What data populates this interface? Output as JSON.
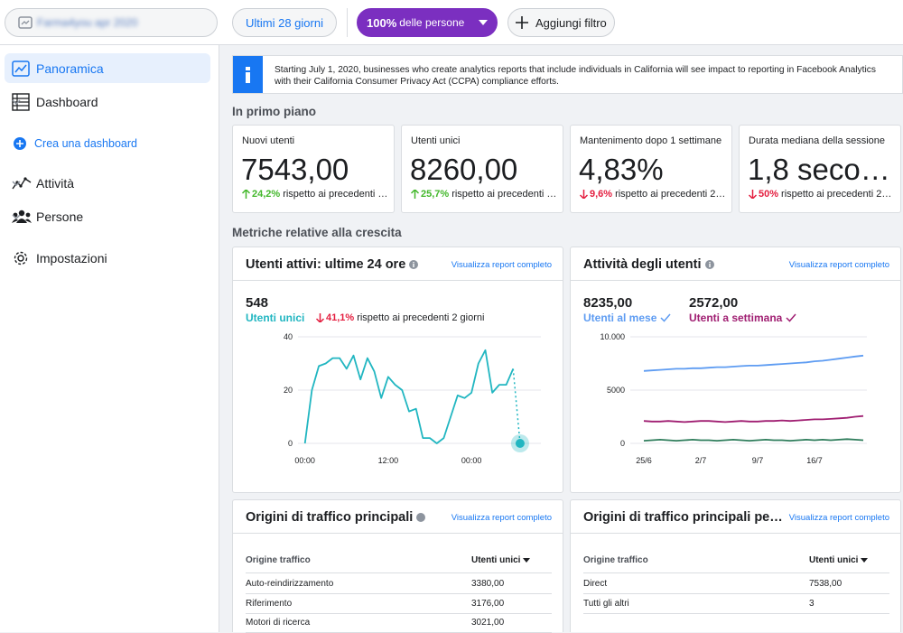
{
  "topbar": {
    "app_name": "Farma4you apr 2020",
    "date_range": "Ultimi 28 giorni",
    "audience_percent": "100%",
    "audience_label": "delle persone",
    "add_filter": "Aggiungi filtro"
  },
  "sidebar": {
    "items": [
      "Panoramica",
      "Dashboard",
      "Crea una dashboard",
      "Attività",
      "Persone",
      "Impostazioni"
    ]
  },
  "notice": [
    "Starting July 1, 2020, businesses who create analytics reports that include individuals in California will see impact to reporting in Facebook Analytics",
    "with their California Consumer Privacy Act (CCPA) compliance efforts."
  ],
  "highlights": {
    "title": "In primo piano",
    "cards": [
      {
        "label": "Nuovi utenti",
        "value": "7543,00",
        "change": "24,2%",
        "direction": "up",
        "comparison": "rispetto ai precedenti …"
      },
      {
        "label": "Utenti unici",
        "value": "8260,00",
        "change": "25,7%",
        "direction": "up",
        "comparison": "rispetto ai precedenti …"
      },
      {
        "label": "Mantenimento dopo 1 settimane",
        "value": "4,83%",
        "change": "9,6%",
        "direction": "down",
        "comparison": "rispetto ai precedenti 2…"
      },
      {
        "label": "Durata mediana della sessione",
        "value": "1,8 seco…",
        "change": "50%",
        "direction": "down",
        "comparison": "rispetto ai precedenti 2…"
      }
    ]
  },
  "growth": {
    "title": "Metriche relative alla crescita"
  },
  "chart_data": [
    {
      "type": "line",
      "title": "Utenti attivi: ultime 24 ore",
      "link": "Visualizza report completo",
      "headline": {
        "value": "548",
        "label": "Utenti unici",
        "change": "41,1%",
        "direction": "down",
        "comparison": "rispetto ai precedenti 2 giorni"
      },
      "x": [
        0,
        1,
        2,
        3,
        4,
        5,
        6,
        7,
        8,
        9,
        10,
        11,
        12,
        13,
        14,
        15,
        16,
        17,
        18,
        19,
        20,
        21,
        22,
        23,
        24,
        25,
        26,
        27,
        28,
        29,
        30,
        31
      ],
      "xlim": [
        -1,
        34
      ],
      "xticks": [
        {
          "value": 0,
          "label": "00:00"
        },
        {
          "value": 12,
          "label": "12:00"
        },
        {
          "value": 24,
          "label": "00:00"
        }
      ],
      "ylim": [
        0,
        40
      ],
      "yticks": [
        0,
        20,
        40
      ],
      "grid": true,
      "incomplete_last": true,
      "series": [
        {
          "color": "#21b6c1",
          "values": [
            0,
            20,
            29,
            30,
            32,
            32,
            28,
            33,
            24,
            32,
            27,
            17,
            25,
            22,
            20,
            12,
            13,
            2,
            2,
            0,
            2,
            10,
            18,
            17,
            19,
            30,
            35,
            19,
            22,
            22,
            28,
            0
          ]
        }
      ]
    },
    {
      "type": "line",
      "title": "Attività degli utenti",
      "link": "Visualizza report completo",
      "categories": [
        "25/6",
        null,
        null,
        null,
        null,
        null,
        null,
        "2/7",
        null,
        null,
        null,
        null,
        null,
        null,
        "9/7",
        null,
        null,
        null,
        null,
        null,
        null,
        "16/7",
        null,
        null,
        null,
        null,
        null,
        null
      ],
      "ylim": [
        0,
        10000
      ],
      "yticks": [
        0,
        5000,
        {
          "value": 10000,
          "label": "10.000"
        }
      ],
      "grid": true,
      "series": [
        {
          "name": "Utenti al mese",
          "headline": "8235,00",
          "color": "#5e9cf2",
          "values": [
            6800,
            6850,
            6900,
            6950,
            7000,
            7000,
            7050,
            7050,
            7100,
            7150,
            7150,
            7200,
            7250,
            7300,
            7300,
            7350,
            7400,
            7450,
            7500,
            7550,
            7600,
            7700,
            7750,
            7850,
            7950,
            8050,
            8150,
            8235
          ]
        },
        {
          "name": "Utenti a settimana",
          "headline": "2572,00",
          "color": "#a01f72",
          "values": [
            2100,
            2050,
            2050,
            2100,
            2050,
            2000,
            2050,
            2100,
            2100,
            2050,
            2000,
            2050,
            2100,
            2050,
            2050,
            2100,
            2100,
            2150,
            2100,
            2150,
            2200,
            2250,
            2250,
            2300,
            2350,
            2400,
            2500,
            2572
          ]
        },
        {
          "color": "#2f7d5c",
          "values": [
            250,
            300,
            350,
            300,
            250,
            300,
            350,
            300,
            300,
            250,
            300,
            350,
            300,
            250,
            300,
            350,
            300,
            300,
            250,
            300,
            350,
            300,
            350,
            300,
            350,
            400,
            350,
            300
          ]
        }
      ]
    }
  ],
  "tables": [
    {
      "title": "Origini di traffico principali",
      "link": "Visualizza report completo",
      "columns": [
        "Origine traffico",
        "Utenti unici"
      ],
      "rows": [
        [
          "Auto-reindirizzamento",
          "3380,00"
        ],
        [
          "Riferimento",
          "3176,00"
        ],
        [
          "Motori di ricerca",
          "3021,00"
        ]
      ]
    },
    {
      "title": "Origini di traffico principali pe…",
      "link": "Visualizza report completo",
      "columns": [
        "Origine traffico",
        "Utenti unici"
      ],
      "rows": [
        [
          "Direct",
          "7538,00"
        ],
        [
          "Tutti gli altri",
          "3"
        ]
      ]
    }
  ]
}
